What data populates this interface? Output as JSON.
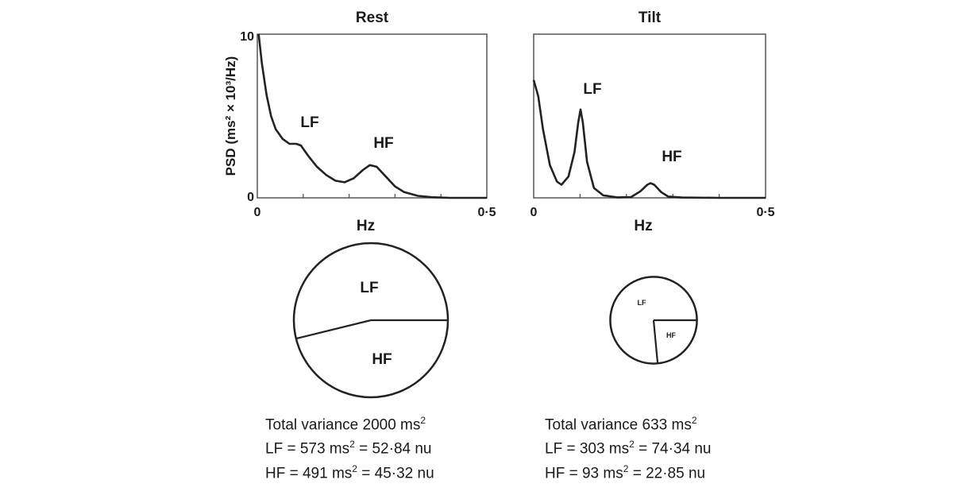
{
  "chart_data": [
    {
      "type": "line",
      "title": "Rest",
      "xlabel": "Hz",
      "ylabel": "PSD (ms² × 10³/Hz)",
      "xlim": [
        0,
        0.5
      ],
      "ylim": [
        0,
        10
      ],
      "xtick_labels": [
        "0",
        "0·5"
      ],
      "ytick_labels": [
        "0",
        "10"
      ],
      "annotations": [
        "LF",
        "HF"
      ],
      "x": [
        0.003,
        0.01,
        0.02,
        0.03,
        0.04,
        0.055,
        0.07,
        0.085,
        0.095,
        0.11,
        0.13,
        0.15,
        0.17,
        0.19,
        0.21,
        0.23,
        0.245,
        0.26,
        0.28,
        0.3,
        0.32,
        0.35,
        0.38,
        0.42,
        0.5
      ],
      "y": [
        10,
        8.2,
        6.3,
        5.0,
        4.2,
        3.6,
        3.3,
        3.3,
        3.2,
        2.6,
        1.9,
        1.4,
        1.05,
        0.95,
        1.2,
        1.7,
        2.0,
        1.9,
        1.3,
        0.7,
        0.35,
        0.12,
        0.04,
        0.0,
        0.0
      ]
    },
    {
      "type": "line",
      "title": "Tilt",
      "xlabel": "Hz",
      "xlim": [
        0,
        0.5
      ],
      "ylim": [
        0,
        10
      ],
      "xtick_labels": [
        "0",
        "0·5"
      ],
      "annotations": [
        "LF",
        "HF"
      ],
      "x": [
        0.0,
        0.01,
        0.02,
        0.035,
        0.05,
        0.06,
        0.075,
        0.088,
        0.096,
        0.101,
        0.106,
        0.115,
        0.13,
        0.15,
        0.18,
        0.21,
        0.23,
        0.245,
        0.252,
        0.26,
        0.275,
        0.29,
        0.32,
        0.4,
        0.5
      ],
      "y": [
        7.2,
        6.2,
        4.2,
        2.0,
        1.0,
        0.8,
        1.3,
        2.8,
        4.6,
        5.4,
        4.6,
        2.2,
        0.6,
        0.15,
        0.03,
        0.05,
        0.4,
        0.8,
        0.9,
        0.8,
        0.35,
        0.08,
        0.02,
        0.0,
        0.0
      ]
    },
    {
      "type": "pie",
      "title": "Rest",
      "total_variance_ms2": 2000,
      "labels": [
        "LF",
        "HF"
      ],
      "values_nu": [
        52.84,
        45.32
      ],
      "values_ms2": [
        573,
        491
      ],
      "stats": {
        "total": "Total variance 2000 ms",
        "lf": "LF = 573 ms",
        "lf_nu": " = 52·84 nu",
        "hf": "HF = 491 ms",
        "hf_nu": " = 45·32 nu",
        "sup": "2"
      }
    },
    {
      "type": "pie",
      "title": "Tilt",
      "total_variance_ms2": 633,
      "labels": [
        "LF",
        "HF"
      ],
      "values_nu": [
        74.34,
        22.85
      ],
      "values_ms2": [
        303,
        93
      ],
      "stats": {
        "total": "Total variance 633 ms",
        "lf": "LF = 303 ms",
        "lf_nu": " = 74·34 nu",
        "hf": "HF = 93 ms",
        "hf_nu": " = 22·85 nu",
        "sup": "2"
      }
    }
  ]
}
